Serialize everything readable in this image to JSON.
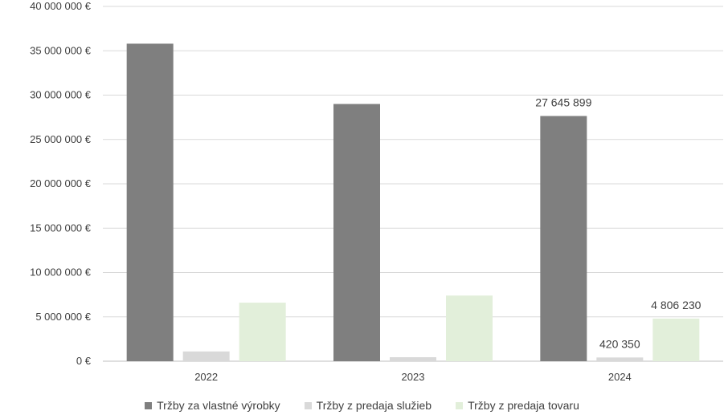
{
  "chart_data": {
    "type": "bar",
    "categories": [
      "2022",
      "2023",
      "2024"
    ],
    "series": [
      {
        "name": "Tržby za vlastné výrobky",
        "color": "#7f7f7f",
        "values": [
          35800000,
          29000000,
          27645899
        ]
      },
      {
        "name": "Tržby z predaja služieb",
        "color": "#d9d9d9",
        "values": [
          1100000,
          450000,
          420350
        ]
      },
      {
        "name": "Tržby z predaja tovaru",
        "color": "#e2efda",
        "values": [
          6600000,
          7400000,
          4806230
        ]
      }
    ],
    "data_labels": [
      {
        "series": 0,
        "category": 2,
        "text": "27 645 899"
      },
      {
        "series": 1,
        "category": 2,
        "text": "420 350"
      },
      {
        "series": 2,
        "category": 2,
        "text": "4 806 230"
      }
    ],
    "y_ticks": [
      "0 €",
      "5 000 000 €",
      "10 000 000 €",
      "15 000 000 €",
      "20 000 000 €",
      "25 000 000 €",
      "30 000 000 €",
      "35 000 000 €",
      "40 000 000 €"
    ],
    "ylim": [
      0,
      40000000
    ],
    "grid": true,
    "legend_position": "bottom"
  }
}
